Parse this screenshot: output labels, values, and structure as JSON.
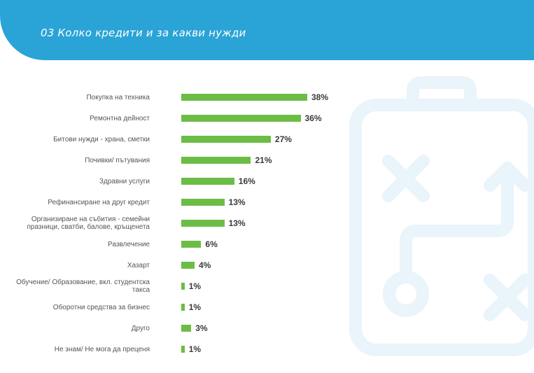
{
  "header": {
    "title": "03 Колко кредити и за какви нужди"
  },
  "colors": {
    "banner": "#2aa3d6",
    "bar": "#6cbd45",
    "decor": "#e9f4fb"
  },
  "chart_data": {
    "type": "bar",
    "orientation": "horizontal",
    "title": "",
    "xlabel": "",
    "ylabel": "",
    "xlim": [
      0,
      38
    ],
    "grid": false,
    "categories": [
      "Покупка на техника",
      "Ремонтна дейност",
      "Битови нужди - храна, сметки",
      "Почивки/ пътувания",
      "Здравни услуги",
      "Рефинансиране на друг кредит",
      "Организиране на събития - семейни празници, сватби, балове, кръщенета",
      "Развлечение",
      "Хазарт",
      "Обучение/ Образование, вкл. студентска такса",
      "Оборотни средства за бизнес",
      "Друго",
      "Не знам/ Не мога да преценя"
    ],
    "values": [
      38,
      36,
      27,
      21,
      16,
      13,
      13,
      6,
      4,
      1,
      1,
      3,
      1
    ],
    "value_labels": [
      "38%",
      "36%",
      "27%",
      "21%",
      "16%",
      "13%",
      "13%",
      "6%",
      "4%",
      "1%",
      "1%",
      "3%",
      "1%"
    ]
  }
}
